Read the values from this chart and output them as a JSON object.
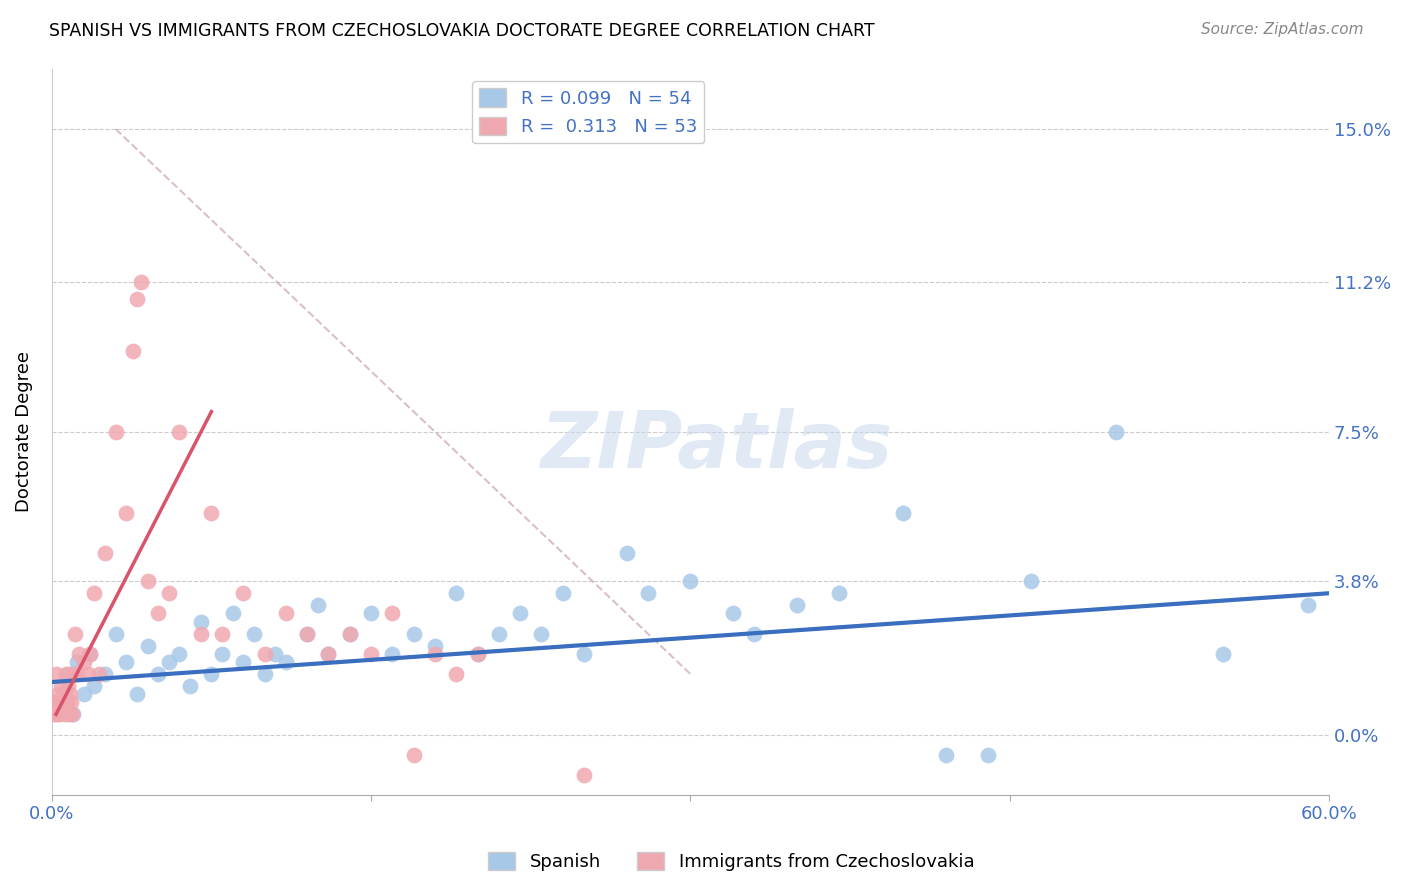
{
  "title": "SPANISH VS IMMIGRANTS FROM CZECHOSLOVAKIA DOCTORATE DEGREE CORRELATION CHART",
  "source": "Source: ZipAtlas.com",
  "ylabel": "Doctorate Degree",
  "ytick_labels": [
    "0.0%",
    "3.8%",
    "7.5%",
    "11.2%",
    "15.0%"
  ],
  "ytick_values": [
    0.0,
    3.8,
    7.5,
    11.2,
    15.0
  ],
  "xlim": [
    0.0,
    60.0
  ],
  "ylim": [
    -1.5,
    16.5
  ],
  "legend_r_blue": "R = 0.099",
  "legend_n_blue": "N = 54",
  "legend_r_pink": "R = 0.313",
  "legend_n_pink": "N = 53",
  "blue_color": "#A8C8E8",
  "pink_color": "#F0A8B0",
  "blue_line_color": "#3A6EBF",
  "pink_line_color": "#D9536A",
  "dashed_line_color": "#D0B0B8",
  "axis_label_color": "#4472C4",
  "blue_scatter": [
    [
      0.5,
      0.8
    ],
    [
      0.8,
      1.5
    ],
    [
      1.0,
      0.5
    ],
    [
      1.2,
      1.8
    ],
    [
      1.5,
      1.0
    ],
    [
      1.8,
      2.0
    ],
    [
      2.0,
      1.2
    ],
    [
      2.5,
      1.5
    ],
    [
      3.0,
      2.5
    ],
    [
      3.5,
      1.8
    ],
    [
      4.0,
      1.0
    ],
    [
      4.5,
      2.2
    ],
    [
      5.0,
      1.5
    ],
    [
      5.5,
      1.8
    ],
    [
      6.0,
      2.0
    ],
    [
      6.5,
      1.2
    ],
    [
      7.0,
      2.8
    ],
    [
      7.5,
      1.5
    ],
    [
      8.0,
      2.0
    ],
    [
      8.5,
      3.0
    ],
    [
      9.0,
      1.8
    ],
    [
      9.5,
      2.5
    ],
    [
      10.0,
      1.5
    ],
    [
      10.5,
      2.0
    ],
    [
      11.0,
      1.8
    ],
    [
      12.0,
      2.5
    ],
    [
      12.5,
      3.2
    ],
    [
      13.0,
      2.0
    ],
    [
      14.0,
      2.5
    ],
    [
      15.0,
      3.0
    ],
    [
      16.0,
      2.0
    ],
    [
      17.0,
      2.5
    ],
    [
      18.0,
      2.2
    ],
    [
      19.0,
      3.5
    ],
    [
      20.0,
      2.0
    ],
    [
      21.0,
      2.5
    ],
    [
      22.0,
      3.0
    ],
    [
      23.0,
      2.5
    ],
    [
      24.0,
      3.5
    ],
    [
      25.0,
      2.0
    ],
    [
      27.0,
      4.5
    ],
    [
      28.0,
      3.5
    ],
    [
      30.0,
      3.8
    ],
    [
      32.0,
      3.0
    ],
    [
      33.0,
      2.5
    ],
    [
      35.0,
      3.2
    ],
    [
      37.0,
      3.5
    ],
    [
      40.0,
      5.5
    ],
    [
      42.0,
      -0.5
    ],
    [
      44.0,
      -0.5
    ],
    [
      46.0,
      3.8
    ],
    [
      50.0,
      7.5
    ],
    [
      55.0,
      2.0
    ],
    [
      59.0,
      3.2
    ]
  ],
  "pink_scatter": [
    [
      0.1,
      0.5
    ],
    [
      0.15,
      0.8
    ],
    [
      0.2,
      1.5
    ],
    [
      0.25,
      0.5
    ],
    [
      0.3,
      1.0
    ],
    [
      0.35,
      0.8
    ],
    [
      0.4,
      0.5
    ],
    [
      0.45,
      1.2
    ],
    [
      0.5,
      0.8
    ],
    [
      0.55,
      1.0
    ],
    [
      0.6,
      0.5
    ],
    [
      0.65,
      1.5
    ],
    [
      0.7,
      0.8
    ],
    [
      0.75,
      1.2
    ],
    [
      0.8,
      0.5
    ],
    [
      0.85,
      1.0
    ],
    [
      0.9,
      0.8
    ],
    [
      0.95,
      0.5
    ],
    [
      1.0,
      1.5
    ],
    [
      1.1,
      2.5
    ],
    [
      1.2,
      1.5
    ],
    [
      1.3,
      2.0
    ],
    [
      1.5,
      1.8
    ],
    [
      1.7,
      1.5
    ],
    [
      1.8,
      2.0
    ],
    [
      2.0,
      3.5
    ],
    [
      2.2,
      1.5
    ],
    [
      2.5,
      4.5
    ],
    [
      3.0,
      7.5
    ],
    [
      3.5,
      5.5
    ],
    [
      3.8,
      9.5
    ],
    [
      4.0,
      10.8
    ],
    [
      4.2,
      11.2
    ],
    [
      4.5,
      3.8
    ],
    [
      5.0,
      3.0
    ],
    [
      5.5,
      3.5
    ],
    [
      6.0,
      7.5
    ],
    [
      7.0,
      2.5
    ],
    [
      7.5,
      5.5
    ],
    [
      8.0,
      2.5
    ],
    [
      9.0,
      3.5
    ],
    [
      10.0,
      2.0
    ],
    [
      11.0,
      3.0
    ],
    [
      12.0,
      2.5
    ],
    [
      13.0,
      2.0
    ],
    [
      14.0,
      2.5
    ],
    [
      15.0,
      2.0
    ],
    [
      16.0,
      3.0
    ],
    [
      17.0,
      -0.5
    ],
    [
      18.0,
      2.0
    ],
    [
      19.0,
      1.5
    ],
    [
      20.0,
      2.0
    ],
    [
      25.0,
      -1.0
    ]
  ],
  "blue_line_x": [
    0.0,
    60.0
  ],
  "blue_line_y": [
    1.3,
    3.5
  ],
  "pink_line_x": [
    0.2,
    7.5
  ],
  "pink_line_y": [
    0.5,
    8.0
  ],
  "dashed_line_x": [
    3.0,
    30.0
  ],
  "dashed_line_y": [
    15.0,
    1.5
  ]
}
